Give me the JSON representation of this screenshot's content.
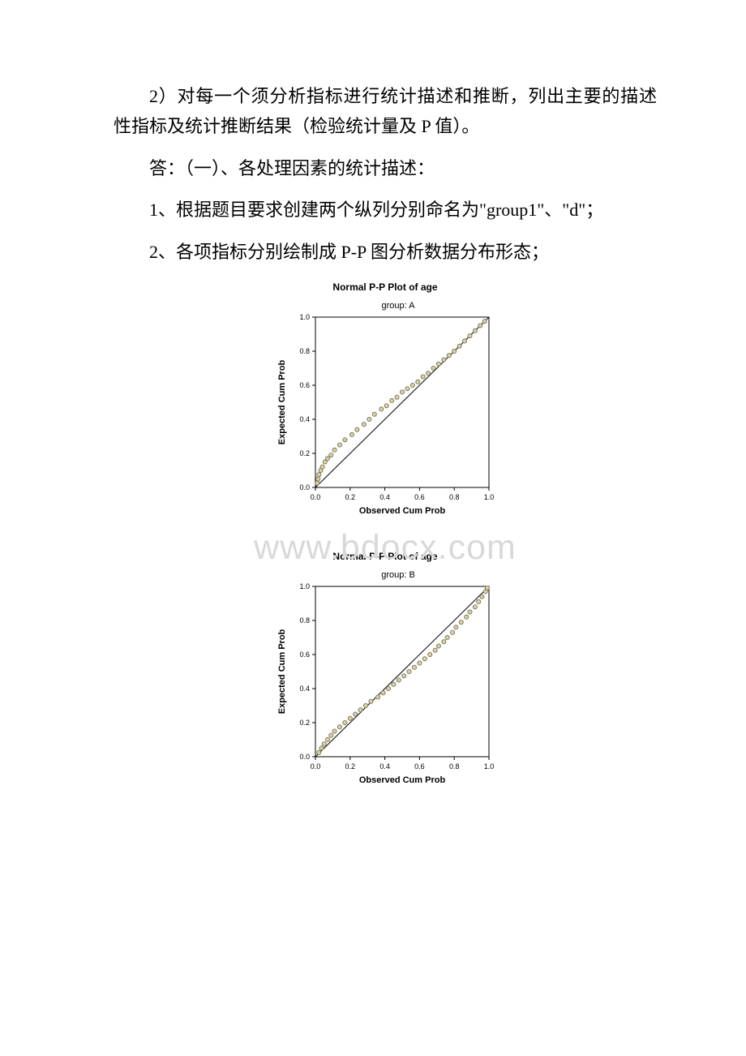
{
  "text": {
    "p1": "2）对每一个须分析指标进行统计描述和推断，列出主要的描述性指标及统计推断结果（检验统计量及 P 值）。",
    "p2": "答：（一）、各处理因素的统计描述：",
    "p3": "1、根据题目要求创建两个纵列分别命名为\"group1\"、\"d\"；",
    "p4": "2、各项指标分别绘制成 P-P 图分析数据分布形态；"
  },
  "watermark": "www.bdocx.com",
  "charts": [
    {
      "title": "Normal P-P Plot of age",
      "subtitle": "group: A",
      "xlabel": "Observed Cum Prob",
      "ylabel": "Expected Cum Prob",
      "xlim": [
        0.0,
        1.0
      ],
      "ylim": [
        0.0,
        1.0
      ],
      "ticks": [
        "0.0",
        "0.2",
        "0.4",
        "0.6",
        "0.8",
        "1.0"
      ],
      "tick_values": [
        0.0,
        0.2,
        0.4,
        0.6,
        0.8,
        1.0
      ],
      "line": {
        "x1": 0.0,
        "y1": 0.0,
        "x2": 1.0,
        "y2": 1.0,
        "color": "#000000",
        "width": 1
      },
      "marker": {
        "radius": 2.6,
        "fill": "#d8d0a8",
        "stroke": "#6b6b4b",
        "stroke_width": 0.8
      },
      "title_fontsize": 12,
      "label_fontsize": 11,
      "tick_fontsize": 9,
      "background_color": "#ffffff",
      "axis_color": "#000000",
      "points": [
        [
          0.01,
          0.025
        ],
        [
          0.015,
          0.05
        ],
        [
          0.02,
          0.075
        ],
        [
          0.03,
          0.1
        ],
        [
          0.04,
          0.12
        ],
        [
          0.055,
          0.15
        ],
        [
          0.07,
          0.17
        ],
        [
          0.09,
          0.19
        ],
        [
          0.11,
          0.22
        ],
        [
          0.14,
          0.25
        ],
        [
          0.17,
          0.28
        ],
        [
          0.21,
          0.31
        ],
        [
          0.24,
          0.34
        ],
        [
          0.28,
          0.37
        ],
        [
          0.31,
          0.4
        ],
        [
          0.34,
          0.43
        ],
        [
          0.38,
          0.46
        ],
        [
          0.41,
          0.48
        ],
        [
          0.44,
          0.51
        ],
        [
          0.47,
          0.53
        ],
        [
          0.5,
          0.56
        ],
        [
          0.53,
          0.58
        ],
        [
          0.56,
          0.6
        ],
        [
          0.59,
          0.62
        ],
        [
          0.62,
          0.65
        ],
        [
          0.65,
          0.67
        ],
        [
          0.68,
          0.7
        ],
        [
          0.71,
          0.725
        ],
        [
          0.74,
          0.75
        ],
        [
          0.77,
          0.775
        ],
        [
          0.8,
          0.8
        ],
        [
          0.83,
          0.83
        ],
        [
          0.86,
          0.86
        ],
        [
          0.89,
          0.89
        ],
        [
          0.92,
          0.92
        ],
        [
          0.95,
          0.95
        ],
        [
          0.975,
          0.975
        ]
      ]
    },
    {
      "title": "Normal P-P Plot of age",
      "subtitle": "group: B",
      "xlabel": "Observed Cum Prob",
      "ylabel": "Expected Cum Prob",
      "xlim": [
        0.0,
        1.0
      ],
      "ylim": [
        0.0,
        1.0
      ],
      "ticks": [
        "0.0",
        "0.2",
        "0.4",
        "0.6",
        "0.8",
        "1.0"
      ],
      "tick_values": [
        0.0,
        0.2,
        0.4,
        0.6,
        0.8,
        1.0
      ],
      "line": {
        "x1": 0.0,
        "y1": 0.0,
        "x2": 1.0,
        "y2": 1.0,
        "color": "#000000",
        "width": 1
      },
      "marker": {
        "radius": 2.6,
        "fill": "#d8d0a8",
        "stroke": "#6b6b4b",
        "stroke_width": 0.8
      },
      "title_fontsize": 12,
      "label_fontsize": 11,
      "tick_fontsize": 9,
      "background_color": "#ffffff",
      "axis_color": "#000000",
      "points": [
        [
          0.02,
          0.025
        ],
        [
          0.035,
          0.05
        ],
        [
          0.05,
          0.075
        ],
        [
          0.07,
          0.1
        ],
        [
          0.09,
          0.125
        ],
        [
          0.11,
          0.15
        ],
        [
          0.14,
          0.175
        ],
        [
          0.17,
          0.2
        ],
        [
          0.2,
          0.225
        ],
        [
          0.23,
          0.25
        ],
        [
          0.26,
          0.275
        ],
        [
          0.29,
          0.3
        ],
        [
          0.32,
          0.325
        ],
        [
          0.36,
          0.35
        ],
        [
          0.39,
          0.375
        ],
        [
          0.42,
          0.4
        ],
        [
          0.45,
          0.425
        ],
        [
          0.48,
          0.45
        ],
        [
          0.51,
          0.475
        ],
        [
          0.54,
          0.5
        ],
        [
          0.57,
          0.525
        ],
        [
          0.6,
          0.55
        ],
        [
          0.63,
          0.575
        ],
        [
          0.66,
          0.6
        ],
        [
          0.69,
          0.625
        ],
        [
          0.71,
          0.65
        ],
        [
          0.74,
          0.675
        ],
        [
          0.76,
          0.7
        ],
        [
          0.79,
          0.73
        ],
        [
          0.81,
          0.76
        ],
        [
          0.84,
          0.79
        ],
        [
          0.87,
          0.82
        ],
        [
          0.89,
          0.85
        ],
        [
          0.92,
          0.88
        ],
        [
          0.94,
          0.91
        ],
        [
          0.96,
          0.94
        ],
        [
          0.98,
          0.97
        ],
        [
          0.99,
          0.99
        ]
      ]
    }
  ]
}
